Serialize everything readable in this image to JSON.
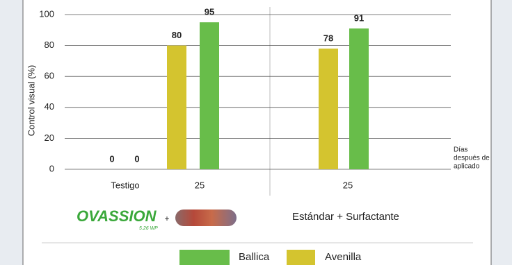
{
  "chart_data": {
    "type": "bar",
    "y_label": "Control visual (%)",
    "categories": [
      "Testigo",
      "25",
      "25"
    ],
    "series": [
      {
        "name": "Avenilla",
        "color": "#d4c42f",
        "values": [
          0,
          80,
          78
        ]
      },
      {
        "name": "Ballica",
        "color": "#68bd4a",
        "values": [
          0,
          95,
          91
        ]
      }
    ],
    "ylim": [
      0,
      100
    ],
    "yticks": [
      0,
      20,
      40,
      60,
      80,
      100
    ],
    "grid": true,
    "x_annotation": [
      "Días",
      "después de",
      "aplicado"
    ],
    "treatments": {
      "product": "OVASSION",
      "formulation": "5.26 WP",
      "plus": "+",
      "standard": "Estándar + Surfactante"
    }
  }
}
